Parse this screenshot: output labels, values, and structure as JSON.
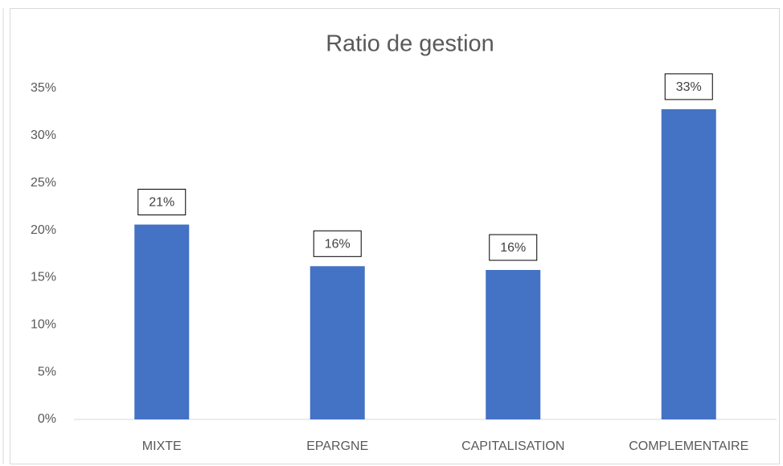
{
  "chart_data": {
    "type": "bar",
    "title": "Ratio de gestion",
    "categories": [
      "MIXTE",
      "EPARGNE",
      "CAPITALISATION",
      "COMPLEMENTAIRE"
    ],
    "values": [
      20.6,
      16.2,
      15.8,
      32.8
    ],
    "value_labels": [
      "21%",
      "16%",
      "16%",
      "33%"
    ],
    "color": "#4472c4",
    "ylim": [
      0,
      35
    ],
    "yticks": [
      {
        "value": 0,
        "label": "0%"
      },
      {
        "value": 5,
        "label": "5%"
      },
      {
        "value": 10,
        "label": "10%"
      },
      {
        "value": 15,
        "label": "15%"
      },
      {
        "value": 20,
        "label": "20%"
      },
      {
        "value": 25,
        "label": "25%"
      },
      {
        "value": 30,
        "label": "30%"
      },
      {
        "value": 35,
        "label": "35%"
      }
    ],
    "grid": false
  }
}
